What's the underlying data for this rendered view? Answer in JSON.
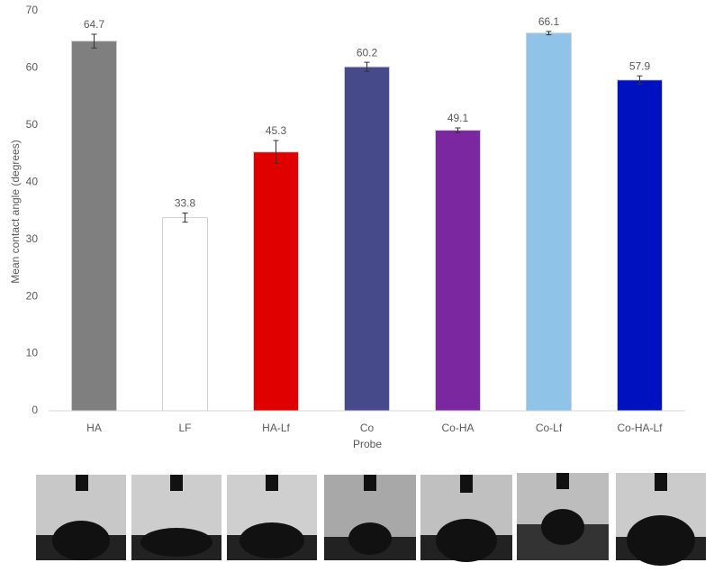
{
  "chart_data": {
    "type": "bar",
    "x_label": "Probe",
    "y_label": "Mean contact angle (degrees)",
    "categories": [
      "HA",
      "LF",
      "HA-Lf",
      "Co",
      "Co-HA",
      "Co-Lf",
      "Co-HA-Lf"
    ],
    "values": [
      64.7,
      33.8,
      45.3,
      60.2,
      49.1,
      66.1,
      57.9
    ],
    "errors": [
      1.2,
      0.8,
      2.0,
      0.8,
      0.4,
      0.3,
      0.7
    ],
    "colors": [
      "#7f7f7f",
      "#ffffff",
      "#e00000",
      "#464a8a",
      "#7b28a0",
      "#8fc3e8",
      "#0012bf"
    ],
    "ylim": [
      0,
      70
    ],
    "yticks": [
      0,
      10,
      20,
      30,
      40,
      50,
      60,
      70
    ],
    "grid": false
  }
}
